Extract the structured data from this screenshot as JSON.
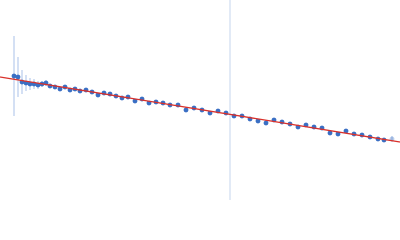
{
  "chart_data": {
    "type": "scatter",
    "xlim": [
      0,
      400
    ],
    "ylim": [
      0,
      200
    ],
    "series": [
      {
        "color": "#3a6fc4",
        "error_color": "#a9c1e8",
        "x": [
          14,
          18,
          22,
          26,
          30,
          34,
          38,
          42,
          46,
          50,
          55,
          60,
          65,
          70,
          75,
          80,
          86,
          92,
          98,
          104,
          110,
          116,
          122,
          128,
          135,
          142,
          149,
          156,
          163,
          170,
          178,
          186,
          194,
          202,
          210,
          218,
          226,
          234,
          242,
          250,
          258,
          266,
          274,
          282,
          290,
          298,
          306,
          314,
          322,
          330,
          338,
          346,
          354,
          362,
          370,
          378,
          384,
          392
        ],
        "values": [
          124,
          123,
          118,
          117,
          116,
          116,
          115,
          116,
          117,
          114,
          113,
          111,
          113,
          110,
          111,
          109,
          110,
          108,
          105,
          107,
          106,
          104,
          102,
          103,
          99,
          101,
          97,
          98,
          97,
          95,
          95,
          90,
          92,
          90,
          87,
          89,
          87,
          84,
          84,
          81,
          79,
          77,
          80,
          78,
          76,
          73,
          75,
          73,
          72,
          67,
          66,
          69,
          66,
          65,
          63,
          61,
          60,
          61
        ],
        "errors": [
          40,
          20,
          12,
          8,
          6,
          5,
          4,
          3,
          3,
          2,
          2,
          2,
          2,
          2,
          2,
          2,
          2,
          2,
          2,
          2,
          2,
          2,
          2,
          2,
          2,
          2,
          2,
          2,
          2,
          2,
          2,
          2,
          2,
          2,
          2,
          2,
          2,
          2,
          2,
          2,
          2,
          2,
          2,
          2,
          2,
          2,
          2,
          2,
          2,
          2,
          2,
          2,
          2,
          2,
          2,
          2,
          2,
          3
        ]
      }
    ],
    "fit": {
      "color": "#d9302a",
      "x": [
        0,
        400
      ],
      "values": [
        123,
        58
      ]
    },
    "marker_x": 230,
    "marker_color": "#c5d4ec"
  }
}
